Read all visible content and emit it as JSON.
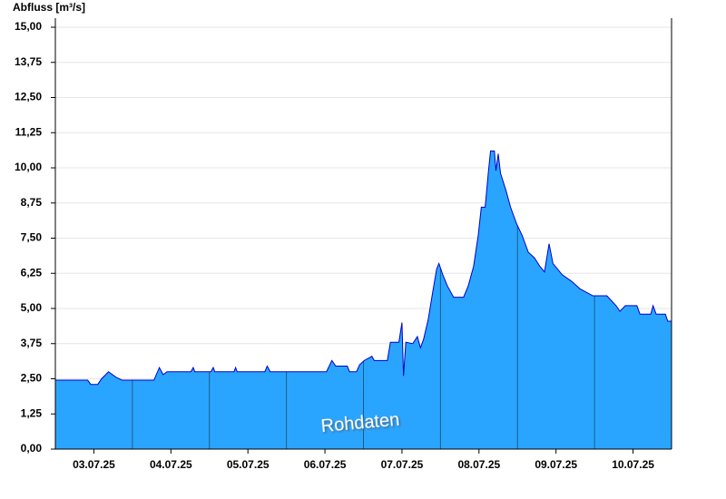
{
  "chart_data": {
    "type": "area",
    "y_label": "Abfluss [m³/s]",
    "annotation": "Rohdaten",
    "color": "#2aa5ff",
    "line_color": "#0000cc",
    "grid": true,
    "xlim": [
      0,
      8
    ],
    "xticks": [
      {
        "value": 0.5,
        "label": "03.07.25"
      },
      {
        "value": 1.5,
        "label": "04.07.25"
      },
      {
        "value": 2.5,
        "label": "05.07.25"
      },
      {
        "value": 3.5,
        "label": "06.07.25"
      },
      {
        "value": 4.5,
        "label": "07.07.25"
      },
      {
        "value": 5.5,
        "label": "08.07.25"
      },
      {
        "value": 6.5,
        "label": "09.07.25"
      },
      {
        "value": 7.5,
        "label": "10.07.25"
      }
    ],
    "ylim": [
      0,
      15
    ],
    "yticks": [
      {
        "value": 0,
        "label": "0,00"
      },
      {
        "value": 1.25,
        "label": "1,25"
      },
      {
        "value": 2.5,
        "label": "2,50"
      },
      {
        "value": 3.75,
        "label": "3,75"
      },
      {
        "value": 5,
        "label": "5,00"
      },
      {
        "value": 6.25,
        "label": "6,25"
      },
      {
        "value": 7.5,
        "label": "7,50"
      },
      {
        "value": 8.75,
        "label": "8,75"
      },
      {
        "value": 10,
        "label": "10,00"
      },
      {
        "value": 11.25,
        "label": "11,25"
      },
      {
        "value": 12.5,
        "label": "12,50"
      },
      {
        "value": 13.75,
        "label": "13,75"
      },
      {
        "value": 15,
        "label": "15,00"
      }
    ],
    "x": [
      0.0,
      0.42,
      0.46,
      0.55,
      0.6,
      0.69,
      0.79,
      0.87,
      1.28,
      1.35,
      1.4,
      1.45,
      1.76,
      1.79,
      1.81,
      2.02,
      2.05,
      2.07,
      2.32,
      2.34,
      2.36,
      2.72,
      2.75,
      2.79,
      3.52,
      3.59,
      3.64,
      3.79,
      3.82,
      3.91,
      3.95,
      4.01,
      4.11,
      4.14,
      4.31,
      4.35,
      4.46,
      4.5,
      4.52,
      4.55,
      4.64,
      4.7,
      4.74,
      4.78,
      4.84,
      4.9,
      4.95,
      4.98,
      5.03,
      5.09,
      5.17,
      5.3,
      5.36,
      5.43,
      5.49,
      5.53,
      5.58,
      5.62,
      5.65,
      5.7,
      5.72,
      5.75,
      5.78,
      5.85,
      5.91,
      5.99,
      6.06,
      6.14,
      6.22,
      6.29,
      6.35,
      6.41,
      6.46,
      6.58,
      6.71,
      6.81,
      6.98,
      7.16,
      7.28,
      7.33,
      7.4,
      7.55,
      7.59,
      7.73,
      7.76,
      7.8,
      7.92,
      7.95,
      8.0
    ],
    "values": [
      2.45,
      2.45,
      2.3,
      2.3,
      2.5,
      2.75,
      2.55,
      2.45,
      2.45,
      2.9,
      2.65,
      2.75,
      2.75,
      2.9,
      2.75,
      2.75,
      2.9,
      2.75,
      2.75,
      2.9,
      2.75,
      2.75,
      2.95,
      2.75,
      2.75,
      3.15,
      2.95,
      2.95,
      2.75,
      2.75,
      3.0,
      3.15,
      3.3,
      3.15,
      3.15,
      3.8,
      3.8,
      4.5,
      2.6,
      3.8,
      3.75,
      4.0,
      3.6,
      3.9,
      4.6,
      5.6,
      6.4,
      6.6,
      6.2,
      5.8,
      5.4,
      5.4,
      5.8,
      6.5,
      7.6,
      8.6,
      8.6,
      9.8,
      10.6,
      10.6,
      9.9,
      10.5,
      9.8,
      9.2,
      8.6,
      8.0,
      7.6,
      7.0,
      6.8,
      6.5,
      6.3,
      7.3,
      6.6,
      6.2,
      5.95,
      5.7,
      5.45,
      5.45,
      5.1,
      4.9,
      5.1,
      5.1,
      4.8,
      4.8,
      5.1,
      4.8,
      4.8,
      4.55,
      4.55
    ]
  }
}
